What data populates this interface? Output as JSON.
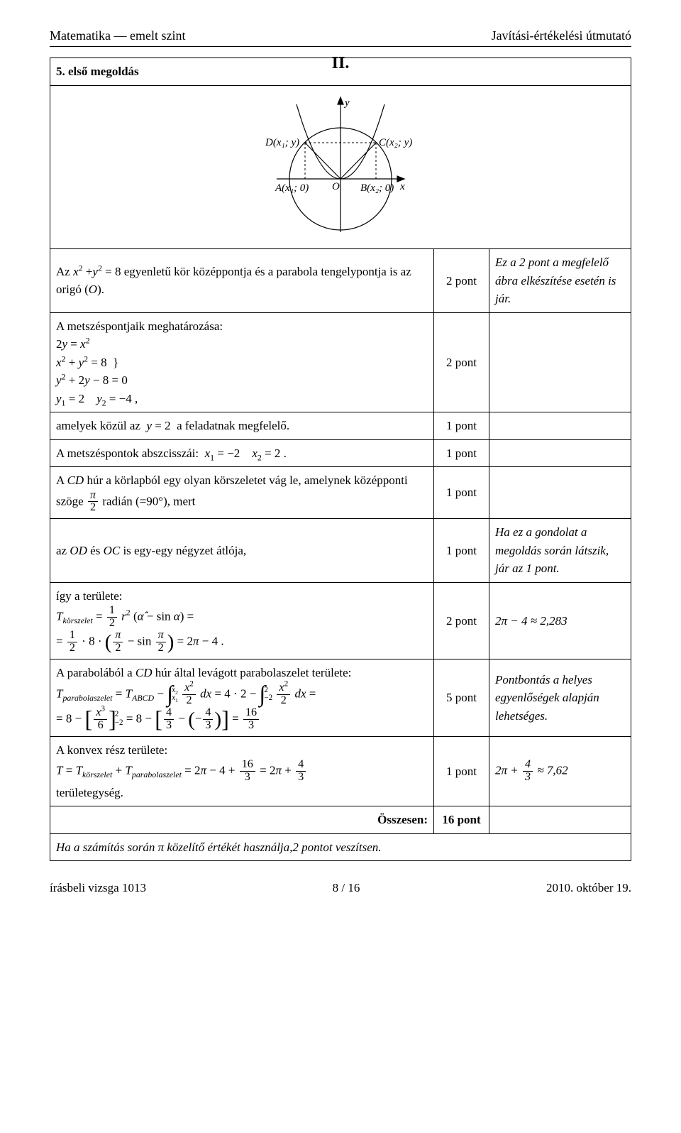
{
  "header": {
    "left": "Matematika — emelt szint",
    "right": "Javítási-értékelési útmutató"
  },
  "section_roman": "II.",
  "title": "5. első megoldás",
  "diagram": {
    "y_label": "y",
    "x_label": "x",
    "O_label": "O",
    "D_label": "D(x₁; y)",
    "C_label": "C(x₂; y)",
    "A_label": "A(x₁; 0)",
    "B_label": "B(x₂; 0)",
    "colors": {
      "stroke": "#000000",
      "dash": "#000000"
    }
  },
  "rows": [
    {
      "left_html": "Az <i>x</i><sup>2</sup> +<i>y</i><sup>2</sup> = 8 egyenletű kör középpontja és a parabola tengelypontja is az origó (<i>O</i>).",
      "pts": "2 pont",
      "note": "Ez a 2 pont a megfelelő ábra elkészítése esetén is jár."
    },
    {
      "left_html": "A metszéspontjaik meghatározása:<br>2<i>y</i> = <i>x</i><sup>2</sup><br><i>x</i><sup>2</sup> + <i>y</i><sup>2</sup> = 8 &nbsp;&#125;<br><i>y</i><sup>2</sup> + 2<i>y</i> − 8 = 0<br><i>y</i><sub>1</sub> = 2 &nbsp;&nbsp; <i>y</i><sub>2</sub> = −4 ,",
      "pts": "2 pont",
      "note": ""
    },
    {
      "left_html": "amelyek közül az &nbsp;<i>y</i> = 2 &nbsp;a feladatnak megfelelő.",
      "pts": "1 pont",
      "note": ""
    },
    {
      "left_html": "A metszéspontok abszcisszái: &nbsp;<i>x</i><sub>1</sub> = −2 &nbsp;&nbsp; <i>x</i><sub>2</sub> = 2 .",
      "pts": "1 pont",
      "note": ""
    },
    {
      "left_html": "A <i>CD</i> húr a körlapból egy olyan körszeletet vág le, amelynek középponti szöge <span class='frac'><span class='num'><i>π</i></span><span class='den'>2</span></span> radián (=90°), mert",
      "pts": "1 pont",
      "note": ""
    },
    {
      "left_html": "az <i>OD</i> és <i>OC</i> is egy-egy négyzet átlója,",
      "pts": "1 pont",
      "note": "Ha ez a gondolat a megoldás során látszik, jár az 1 pont."
    },
    {
      "left_html": "így a területe:<br><i>T</i><sub><i>körszelet</i></sub> = <span class='frac'><span class='num'>1</span><span class='den'>2</span></span> <i>r</i><sup>2</sup> (<i>α̂</i> − sin <i>α</i>) =<br>= <span class='frac'><span class='num'>1</span><span class='den'>2</span></span> · 8 · <span class='bigparen'>(</span><span class='frac'><span class='num'><i>π</i></span><span class='den'>2</span></span> − sin <span class='frac'><span class='num'><i>π</i></span><span class='den'>2</span></span><span class='bigparen'>)</span> = 2<i>π</i> − 4 .",
      "pts": "2 pont",
      "note": "2π − 4 ≈ 2,283"
    },
    {
      "left_html": "A parabolából a <i>CD</i> húr által levágott parabolaszelet területe:<br><i>T</i><sub><i>parabolaszelet</i></sub> = <i>T</i><sub><i>ABCD</i></sub> − <span class='bigop'>∫</span><span class='intbounds'><span class='ub'><i>x</i><sub>2</sub></span><span class='lb'><i>x</i><sub>1</sub></span></span> <span class='frac'><span class='num'><i>x</i><sup>2</sup></span><span class='den'>2</span></span> <i>dx</i> = 4 · 2 − <span class='bigop'>∫</span><span class='intbounds'><span class='ub'>2</span><span class='lb'>−2</span></span> <span class='frac'><span class='num'><i>x</i><sup>2</sup></span><span class='den'>2</span></span> <i>dx</i> =<br>= 8 − <span class='bigbrac'>[</span><span class='frac'><span class='num'><i>x</i><sup>3</sup></span><span class='den'>6</span></span><span class='bigbrac'>]</span><span class='intbounds'><span class='ub'>2</span><span class='lb'>−2</span></span> = 8 − <span class='bigbrac'>[</span><span class='frac'><span class='num'>4</span><span class='den'>3</span></span> − <span class='bigparen'>(</span>−<span class='frac'><span class='num'>4</span><span class='den'>3</span></span><span class='bigparen'>)</span><span class='bigbrac'>]</span> = <span class='frac'><span class='num'>16</span><span class='den'>3</span></span>",
      "pts": "5 pont",
      "note": "Pontbontás a helyes egyenlőségek alapján lehetséges."
    },
    {
      "left_html": "A konvex rész területe:<br><i>T</i> = <i>T</i><sub><i>körszelet</i></sub> + <i>T</i><sub><i>parabolaszelet</i></sub> = 2<i>π</i> − 4 + <span class='frac'><span class='num'>16</span><span class='den'>3</span></span> = 2<i>π</i> + <span class='frac'><span class='num'>4</span><span class='den'>3</span></span><br>területegység.",
      "pts": "1 pont",
      "note": "2π + <span class='frac'><span class='num'>4</span><span class='den'>3</span></span> ≈ 7,62"
    }
  ],
  "sum_label": "Összesen:",
  "sum_pts": "16 pont",
  "final_note": "Ha a számítás során π közelítő értékét használja,2 pontot veszítsen.",
  "footer": {
    "left": "írásbeli vizsga 1013",
    "center": "8 / 16",
    "right": "2010. október 19."
  }
}
